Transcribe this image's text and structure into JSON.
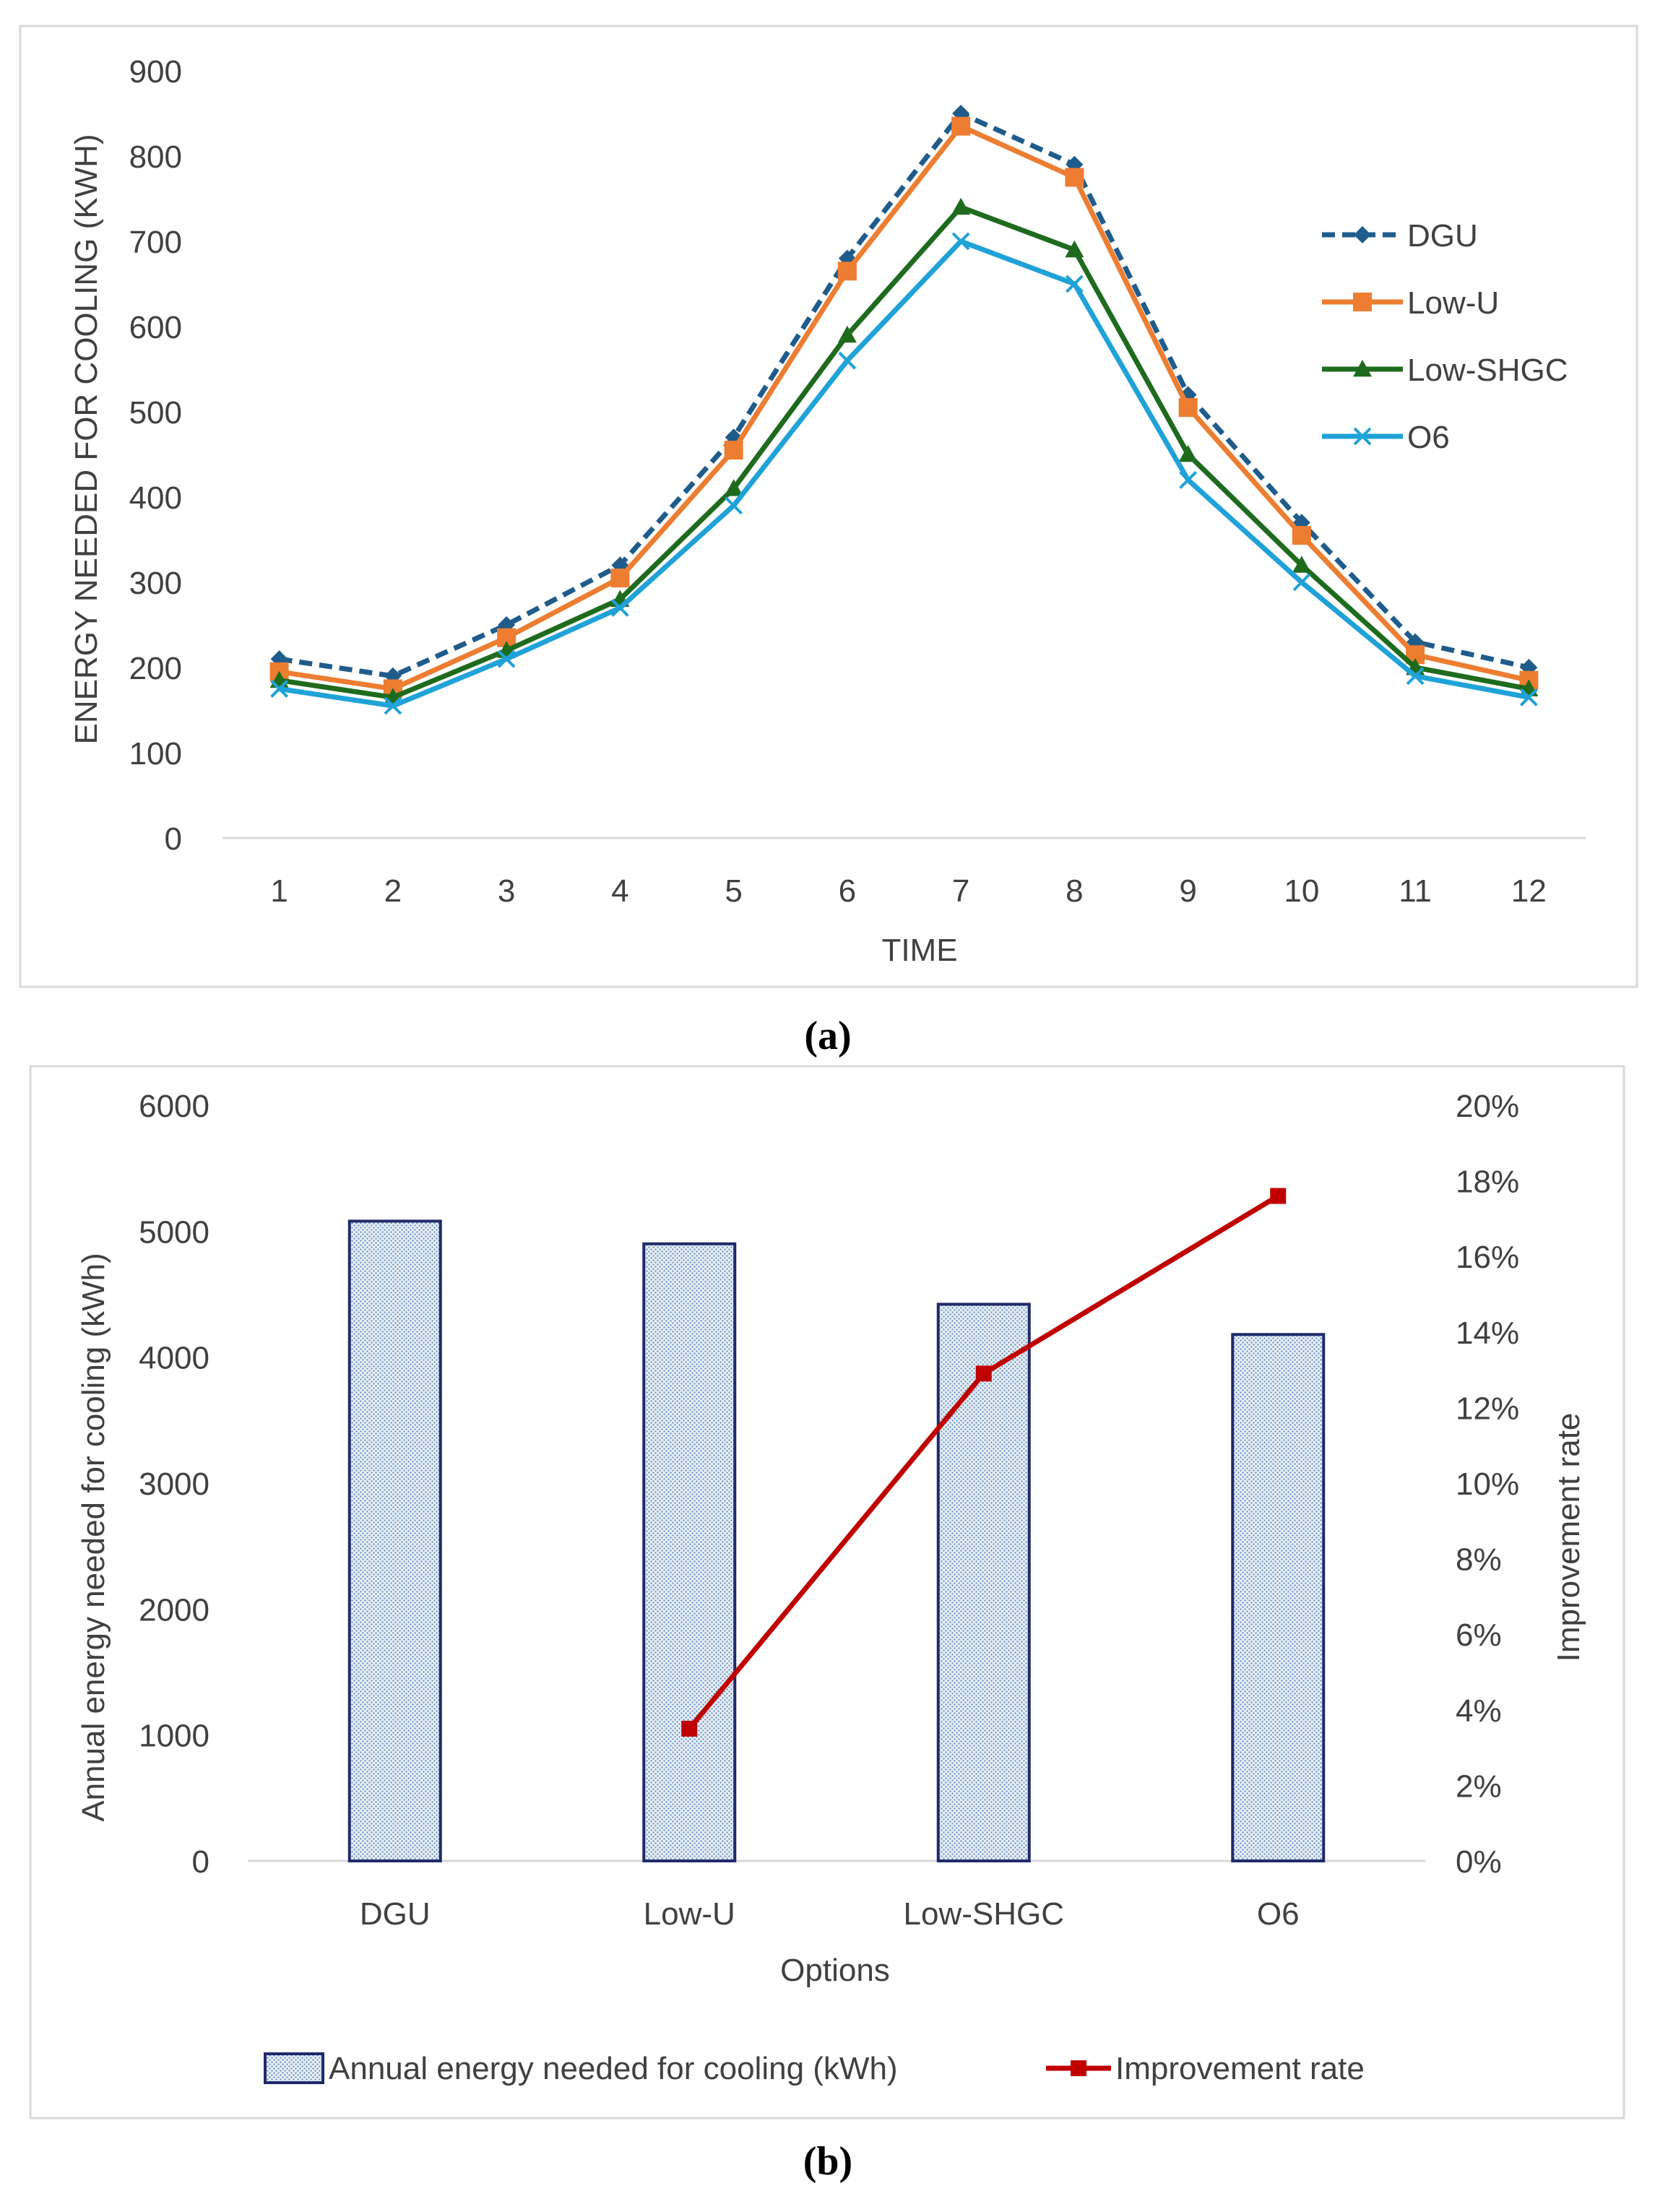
{
  "chart_data": [
    {
      "type": "line",
      "caption": "(a)",
      "xlabel": "TIME",
      "ylabel": "ENERGY NEEDED FOR COOLING (KWH)",
      "x": [
        "1",
        "2",
        "3",
        "4",
        "5",
        "6",
        "7",
        "8",
        "9",
        "10",
        "11",
        "12"
      ],
      "yticks": [
        "0",
        "100",
        "200",
        "300",
        "400",
        "500",
        "600",
        "700",
        "800",
        "900"
      ],
      "ylim": [
        0,
        900
      ],
      "legend_position": "right",
      "series": [
        {
          "name": "DGU",
          "color": "#1F5C8B",
          "marker": "diamond",
          "dash": true,
          "values": [
            210,
            190,
            250,
            320,
            470,
            680,
            850,
            790,
            520,
            370,
            230,
            200
          ]
        },
        {
          "name": "Low-U",
          "color": "#ED7D31",
          "marker": "square",
          "dash": false,
          "values": [
            195,
            175,
            235,
            305,
            455,
            665,
            835,
            775,
            505,
            355,
            215,
            185
          ]
        },
        {
          "name": "Low-SHGC",
          "color": "#1E6B1E",
          "marker": "triangle",
          "dash": false,
          "values": [
            185,
            165,
            220,
            280,
            410,
            590,
            740,
            690,
            450,
            320,
            200,
            175
          ]
        },
        {
          "name": "O6",
          "color": "#1FA2D8",
          "marker": "x",
          "dash": false,
          "values": [
            175,
            155,
            210,
            270,
            390,
            560,
            700,
            650,
            420,
            300,
            190,
            165
          ]
        }
      ]
    },
    {
      "type": "bar+line",
      "caption": "(b)",
      "xlabel": "Options",
      "ylabel_left": "Annual energy needed for cooling (kWh)",
      "ylabel_right": "Improvement rate",
      "categories": [
        "DGU",
        "Low-U",
        "Low-SHGC",
        "O6"
      ],
      "yticks_left": [
        "0",
        "1000",
        "2000",
        "3000",
        "4000",
        "5000",
        "6000"
      ],
      "yticks_right": [
        "0%",
        "2%",
        "4%",
        "6%",
        "8%",
        "10%",
        "12%",
        "14%",
        "16%",
        "18%",
        "20%"
      ],
      "ylim_left": [
        0,
        6000
      ],
      "ylim_right": [
        0,
        20
      ],
      "legend_position": "bottom",
      "series": [
        {
          "name": "Annual energy needed for cooling (kWh)",
          "kind": "bar",
          "color": "#1F2A6B",
          "values": [
            5080,
            4900,
            4420,
            4180
          ]
        },
        {
          "name": "Improvement rate",
          "kind": "line",
          "axis": "right",
          "color": "#C00000",
          "values": [
            null,
            3.5,
            12.9,
            17.6
          ]
        }
      ]
    }
  ]
}
